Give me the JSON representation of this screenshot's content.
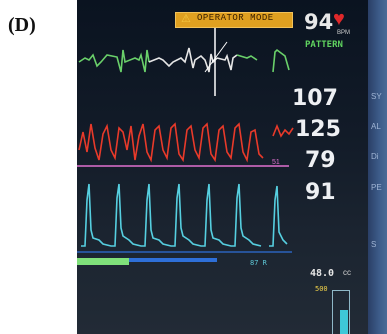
{
  "panel_label": "(D)",
  "monitor": {
    "alert_banner": "OPERATOR MODE",
    "heart_rate": {
      "value": "94",
      "unit": "BPM",
      "mode": "PATTERN"
    },
    "readings": [
      "107",
      "125",
      "79",
      "91"
    ],
    "pressure_line_label": "51",
    "bottom_value": "48.0",
    "bottom_unit": "cc",
    "bar_max_label": "500",
    "waveform_small_label": "87 R"
  },
  "side_panel_text": [
    "SY",
    "AL",
    "Di",
    "PE",
    "S"
  ],
  "colors": {
    "ecg": "#e6e6e6",
    "ecg_green": "#6ad06a",
    "pressure": "#e83a2a",
    "baseline": "#e070d0",
    "volume": "#56cfe0",
    "alert": "#e0a020",
    "heart": "#e0282a"
  }
}
